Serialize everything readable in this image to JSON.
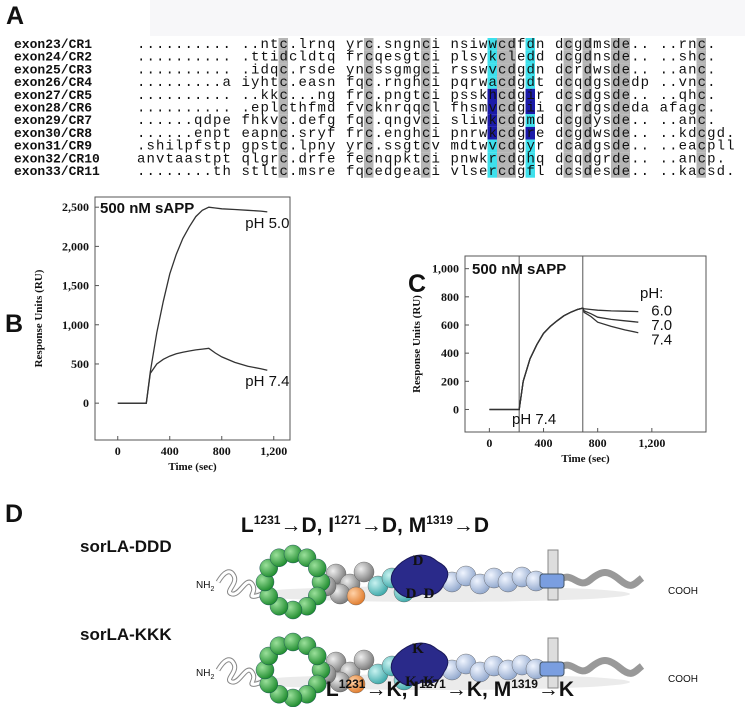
{
  "alignment": {
    "panel": "A",
    "rows": [
      {
        "name": "exon23/CR1",
        "sequence": ".......... ..ntc.lrnq yrc.sngnci nsiwwcdfdn dcgdmsde.. ..rnc."
      },
      {
        "name": "exon24/CR2",
        "sequence": ".......... .ttidcldtq frcqesgtci plsykcledd dcgdnsde.. ..shc."
      },
      {
        "name": "exon25/CR3",
        "sequence": ".......... .idqc.rsde yncssgmgci rsswvcdgdn dcrdwsde.. ..anc."
      },
      {
        "name": "exon26/CR4",
        "sequence": ".........a iyhtc.easn fqc.rnghci pqrwacdgdt dcqdgsdedp ..vnc."
      },
      {
        "name": "exon27/CR5",
        "sequence": ".......... ..kkc...ng frc.pngtci psskhcdgir dcsdgsde.. ..qhc."
      },
      {
        "name": "exon28/CR6",
        "sequence": ".......... .eplcthfmd fvcknrqqcl fhsmvcdgii qcrdgsdeda afagc."
      },
      {
        "name": "exon29/CR7",
        "sequence": "......qdpe fhkvc.defg fqc.qngvci sliwkcdgmd dcgdysde.. ..anc."
      },
      {
        "name": "exon30/CR8",
        "sequence": "......enpt eapnc.sryf frc.enghci pnrwkcdgre dcgdwsde.. ..kdcgd."
      },
      {
        "name": "exon31/CR9",
        "sequence": ".shilpfstp gpstc.lpny yrc.ssgtcv mdtwvcdgyr dcadgsde.. ..eacpll"
      },
      {
        "name": "exon32/CR10",
        "sequence": "anvtaastpt qlgrc.drfe fecnqpktci pnwkrcdghq dcqdgrde.. ..ancp."
      },
      {
        "name": "exon33/CR11",
        "sequence": "........th stltc.msre fqcedgeaci vlsercdgfl dcsdesde.. ..kacsd."
      }
    ]
  },
  "chart_data": [
    {
      "type": "line",
      "panel": "B",
      "annotation": "500 nM sAPP",
      "x_label": "Time (sec)",
      "y_label": "Response Units (RU)",
      "x": [
        0,
        100,
        200,
        220,
        250,
        300,
        350,
        400,
        450,
        500,
        550,
        600,
        650,
        700,
        750,
        800,
        900,
        1000,
        1100,
        1150
      ],
      "series": [
        {
          "name": "pH 5.0",
          "color": "#333333",
          "values": [
            0,
            0,
            0,
            0,
            400,
            900,
            1300,
            1650,
            1900,
            2100,
            2250,
            2380,
            2460,
            2500,
            2490,
            2480,
            2470,
            2460,
            2450,
            2440
          ]
        },
        {
          "name": "pH 7.4",
          "color": "#333333",
          "values": [
            0,
            0,
            0,
            0,
            380,
            500,
            560,
            600,
            630,
            650,
            665,
            680,
            690,
            700,
            640,
            590,
            520,
            470,
            440,
            420
          ]
        }
      ],
      "xlim": [
        -175,
        1325
      ],
      "ylim": [
        -470,
        2630
      ],
      "xticks": [
        0,
        400,
        800,
        {
          "value": 1200,
          "label": "1,200"
        }
      ],
      "yticks": [
        0,
        500,
        {
          "value": 1000,
          "label": "1,000"
        },
        {
          "value": 1500,
          "label": "1,500"
        },
        {
          "value": 2000,
          "label": "2,000"
        },
        {
          "value": 2500,
          "label": "2,500"
        }
      ]
    },
    {
      "type": "line",
      "panel": "C",
      "annotation": "500 nM sAPP",
      "legend_title": "pH:",
      "phase_label": "pH 7.4",
      "x_label": "Time (sec)",
      "y_label": "Response Units (RU)",
      "markers": [
        220,
        690
      ],
      "x": [
        0,
        100,
        200,
        220,
        250,
        300,
        350,
        400,
        450,
        500,
        550,
        600,
        650,
        690,
        700,
        750,
        800,
        900,
        1000,
        1100
      ],
      "series": [
        {
          "name": "6.0",
          "color": "#333333",
          "values": [
            0,
            0,
            0,
            0,
            200,
            360,
            460,
            540,
            590,
            630,
            665,
            690,
            710,
            720,
            715,
            710,
            705,
            700,
            698,
            695
          ]
        },
        {
          "name": "7.0",
          "color": "#333333",
          "values": [
            0,
            0,
            0,
            0,
            200,
            360,
            460,
            540,
            590,
            630,
            665,
            690,
            710,
            720,
            700,
            680,
            655,
            640,
            630,
            620
          ]
        },
        {
          "name": "7.4",
          "color": "#333333",
          "values": [
            0,
            0,
            0,
            0,
            200,
            360,
            460,
            540,
            590,
            630,
            665,
            690,
            710,
            720,
            690,
            660,
            620,
            590,
            565,
            545
          ]
        }
      ],
      "xlim": [
        -180,
        1600
      ],
      "ylim": [
        -160,
        1090
      ],
      "xticks": [
        0,
        400,
        800,
        {
          "value": 1200,
          "label": "1,200"
        }
      ],
      "yticks": [
        0,
        200,
        400,
        600,
        800,
        {
          "value": 1000,
          "label": "1,000"
        }
      ]
    }
  ],
  "diagram": {
    "panel": "D",
    "n_terminus": {
      "text": "NH",
      "sub": "2"
    },
    "c_terminus": "COOH",
    "constructs": [
      {
        "name": "sorLA-DDD",
        "residues": [
          "D",
          "D",
          "D"
        ],
        "mutations": [
          {
            "residue": "L",
            "position": "1231",
            "change": "→D, "
          },
          {
            "residue": "I",
            "position": "1271",
            "change": "→D, "
          },
          {
            "residue": "M",
            "position": "1319",
            "change": "→D"
          }
        ]
      },
      {
        "name": "sorLA-KKK",
        "residues": [
          "K",
          "K",
          "K"
        ],
        "mutations": [
          {
            "residue": "L",
            "position": "1231",
            "change": "→K, "
          },
          {
            "residue": "I",
            "position": "1271",
            "change": "→K, "
          },
          {
            "residue": "M",
            "position": "1319",
            "change": "→K"
          }
        ]
      }
    ]
  }
}
